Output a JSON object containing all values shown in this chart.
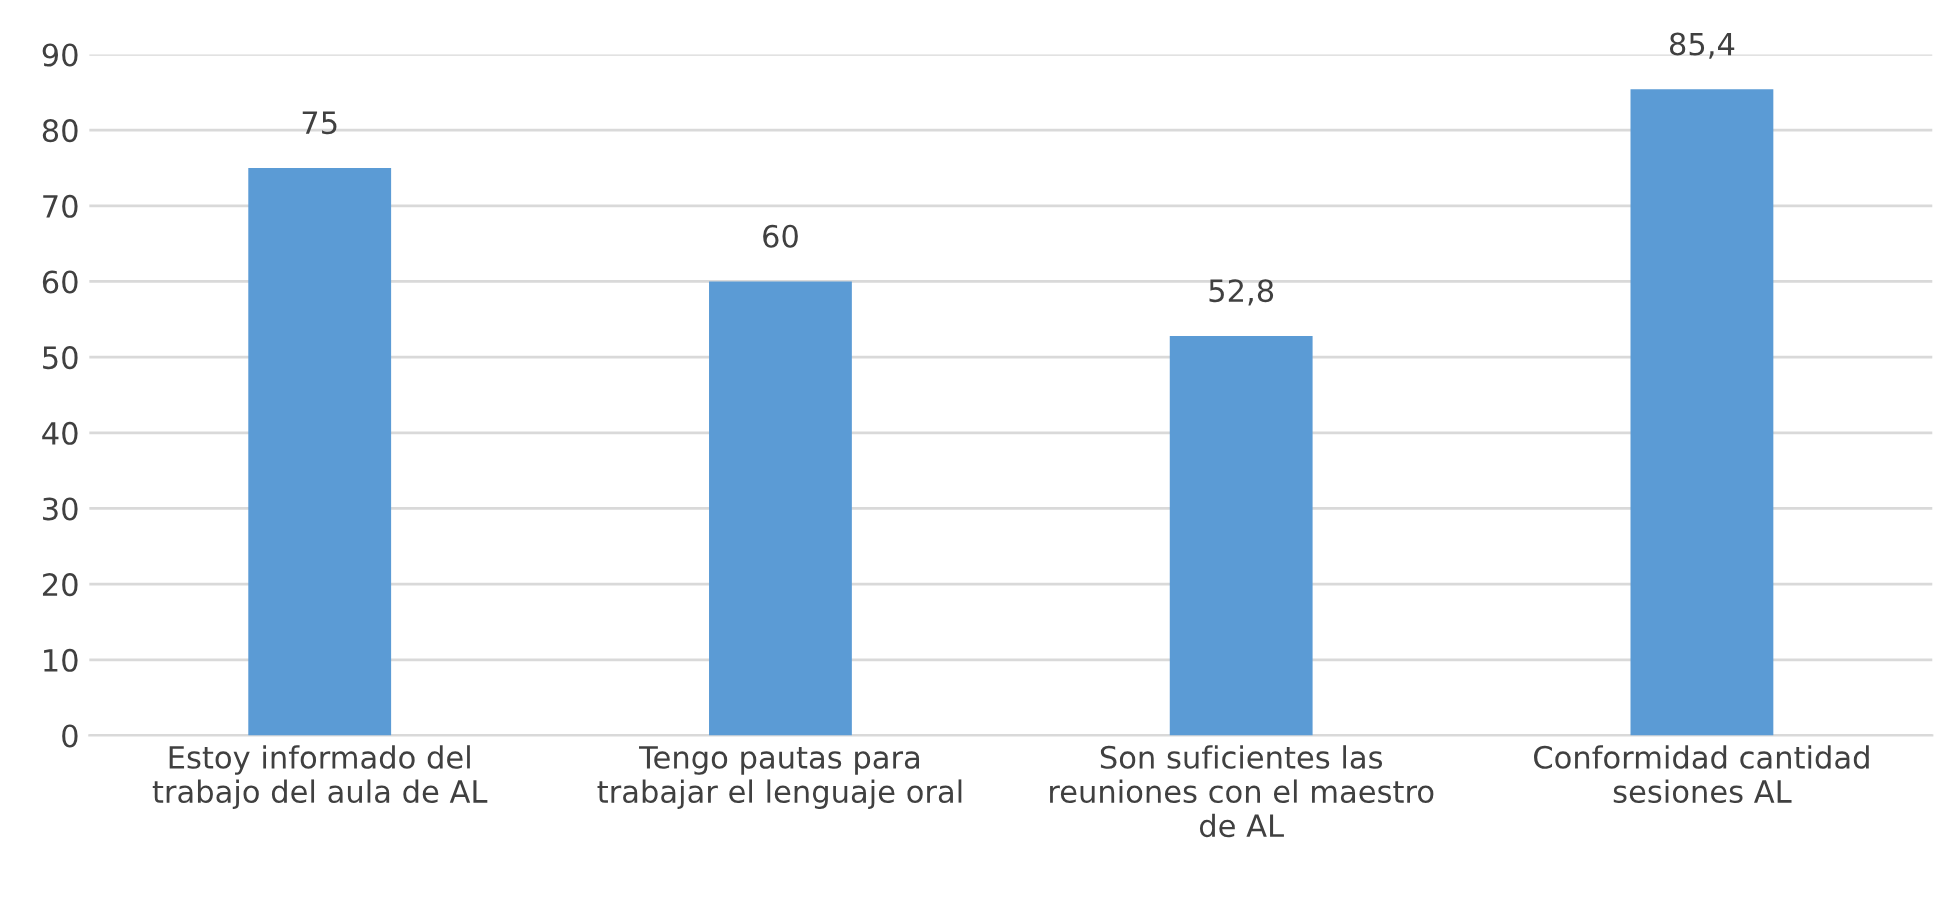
{
  "chart_data": {
    "type": "bar",
    "categories": [
      "Estoy informado del\ntrabajo del aula de AL",
      "Tengo pautas para\ntrabajar el lenguaje oral",
      "Son suficientes las\nreuniones con el maestro\nde AL",
      "Conformidad cantidad\nsesiones AL"
    ],
    "values": [
      75,
      60,
      52.8,
      85.4
    ],
    "value_labels": [
      "75",
      "60",
      "52,8",
      "85,4"
    ],
    "color": "#5b9bd5",
    "ylim": [
      0,
      90
    ],
    "yticks": [
      0,
      10,
      20,
      30,
      40,
      50,
      60,
      70,
      80,
      90
    ],
    "grid": "y",
    "legend": false
  }
}
